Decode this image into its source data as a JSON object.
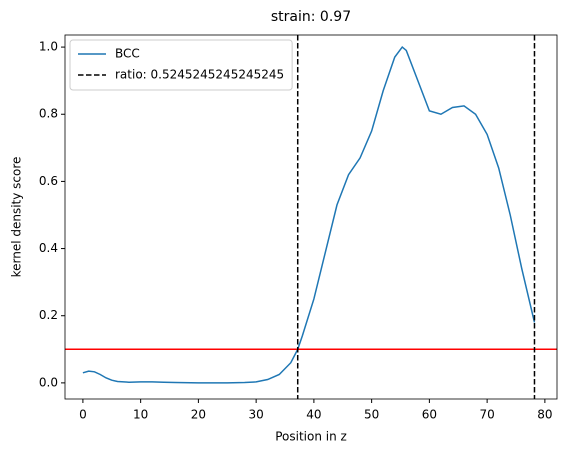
{
  "chart_data": {
    "type": "line",
    "title": "strain: 0.97",
    "xlabel": "Position in z",
    "ylabel": "kernel density score",
    "x": [
      0,
      1,
      2,
      3,
      4,
      5,
      6,
      8,
      10,
      12,
      14,
      16,
      20,
      25,
      28,
      30,
      32,
      34,
      36,
      37.2,
      38,
      40,
      42,
      44,
      46,
      48,
      50,
      52,
      54,
      55.3,
      56,
      58,
      60,
      62,
      64,
      66,
      68,
      70,
      72,
      74,
      76,
      78.2
    ],
    "series": [
      {
        "name": "BCC",
        "color": "#1f77b4",
        "values": [
          0.03,
          0.035,
          0.033,
          0.025,
          0.015,
          0.008,
          0.004,
          0.002,
          0.003,
          0.003,
          0.002,
          0.001,
          0.0,
          0.0,
          0.001,
          0.003,
          0.01,
          0.025,
          0.06,
          0.1,
          0.14,
          0.25,
          0.39,
          0.53,
          0.62,
          0.67,
          0.75,
          0.87,
          0.97,
          1.0,
          0.99,
          0.9,
          0.81,
          0.8,
          0.82,
          0.825,
          0.8,
          0.74,
          0.64,
          0.5,
          0.34,
          0.18
        ]
      }
    ],
    "vlines": {
      "name": "ratio: 0.5245245245245245",
      "color": "#000000",
      "x": [
        37.2,
        78.2
      ]
    },
    "hline": {
      "y": 0.1,
      "color": "#ff0000"
    },
    "xlim": [
      -3.1,
      82.1
    ],
    "ylim": [
      -0.048,
      1.036
    ],
    "xticks": [
      0,
      10,
      20,
      30,
      40,
      50,
      60,
      70,
      80
    ],
    "yticks": [
      {
        "value": 0,
        "label": "0.0"
      },
      0.2,
      0.4,
      0.6,
      0.8,
      {
        "value": 1,
        "label": "1.0"
      }
    ],
    "legend": "upper left"
  }
}
